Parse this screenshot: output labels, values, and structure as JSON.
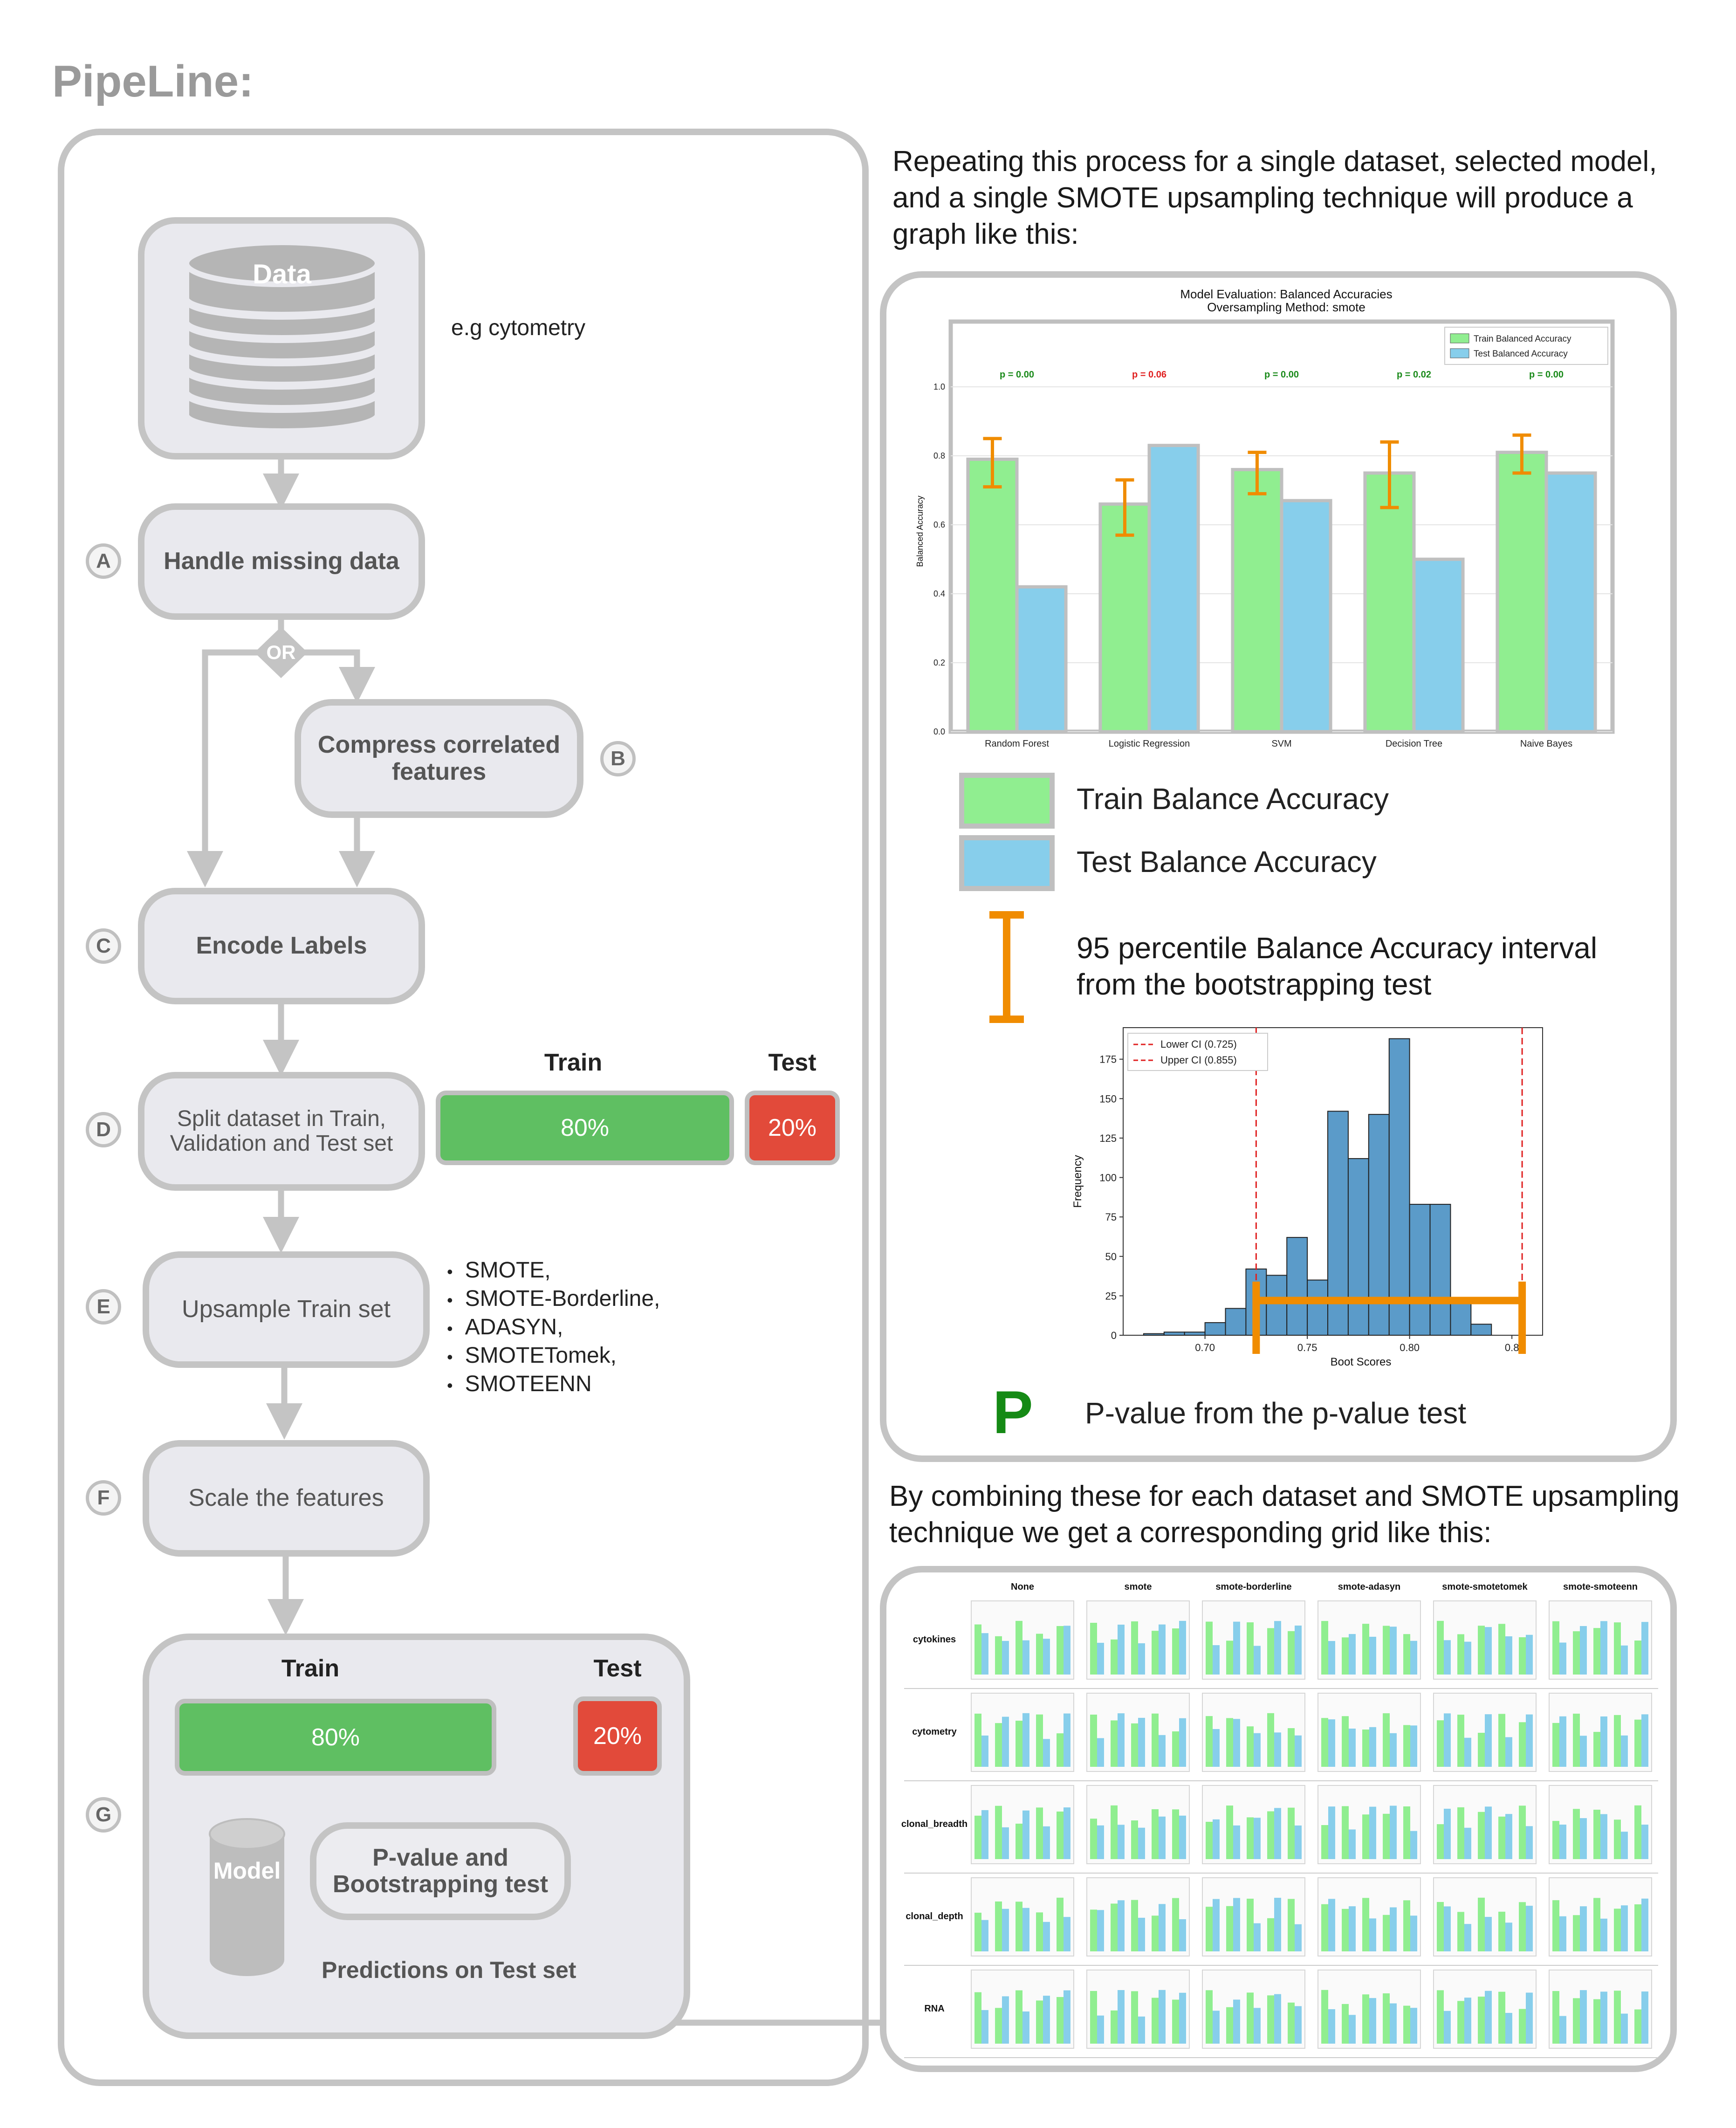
{
  "title": "PipeLine:",
  "pipeline": {
    "data_label": "Data",
    "data_example": "e.g cytometry",
    "steps": {
      "a": {
        "letter": "A",
        "label": "Handle missing data"
      },
      "or": "OR",
      "b": {
        "letter": "B",
        "label": "Compress correlated features"
      },
      "c": {
        "letter": "C",
        "label": "Encode Labels"
      },
      "d": {
        "letter": "D",
        "label": "Split dataset in Train, Validation and Test set"
      },
      "e": {
        "letter": "E",
        "label": "Upsample Train set"
      },
      "f": {
        "letter": "F",
        "label": "Scale the features"
      },
      "g": {
        "letter": "G"
      }
    },
    "split": {
      "train_label": "Train",
      "test_label": "Test",
      "train_pct": "80%",
      "test_pct": "20%"
    },
    "upsample_methods": [
      "SMOTE,",
      "SMOTE-Borderline,",
      "ADASYN,",
      "SMOTETomek,",
      "SMOTEENN"
    ],
    "model_block": {
      "train_label": "Train",
      "test_label": "Test",
      "train_pct": "80%",
      "test_pct": "20%",
      "model_label": "Model",
      "test_box": "P-value and Bootstrapping test",
      "predictions": "Predictions on Test set"
    }
  },
  "right": {
    "intro": "Repeating this process for a single dataset, selected model, and a single SMOTE upsampling technique will produce a graph like this:",
    "legend": {
      "train": "Train Balance Accuracy",
      "test": "Test Balance Accuracy",
      "ci": "95 percentile Balance Accuracy interval from the bootstrapping test",
      "p_symbol": "P",
      "p": "P-value from the p-value test"
    },
    "combine_text": "By combining these for each dataset and SMOTE upsampling technique we get a corresponding grid like this:",
    "grid": {
      "columns": [
        "None",
        "smote",
        "smote-borderline",
        "smote-adasyn",
        "smote-smotetomek",
        "smote-smoteenn"
      ],
      "rows": [
        "cytokines",
        "cytometry",
        "clonal_breadth",
        "clonal_depth",
        "RNA"
      ]
    }
  },
  "chart_data": [
    {
      "type": "bar",
      "title": "Model Evaluation: Balanced Accuracies",
      "subtitle": "Oversampling Method: smote",
      "xlabel": "",
      "ylabel": "Balanced Accuracy",
      "ylim": [
        0,
        1.0
      ],
      "yticks": [
        "0.0",
        "0.2",
        "0.4",
        "0.6",
        "0.8",
        "1.0"
      ],
      "categories": [
        "Random Forest",
        "Logistic Regression",
        "SVM",
        "Decision Tree",
        "Naive Bayes"
      ],
      "series": [
        {
          "name": "Train Balanced Accuracy",
          "values": [
            0.79,
            0.66,
            0.76,
            0.75,
            0.81
          ],
          "color": "#90ee90"
        },
        {
          "name": "Test Balanced Accuracy",
          "values": [
            0.42,
            0.83,
            0.67,
            0.5,
            0.75
          ],
          "color": "#87ceeb"
        }
      ],
      "ci": [
        [
          0.71,
          0.85
        ],
        [
          0.57,
          0.73
        ],
        [
          0.69,
          0.81
        ],
        [
          0.65,
          0.84
        ],
        [
          0.75,
          0.86
        ]
      ],
      "p_values": [
        "p = 0.00",
        "p = 0.06",
        "p = 0.00",
        "p = 0.02",
        "p = 0.00"
      ],
      "p_colors": [
        "#1a8a1a",
        "#e02020",
        "#1a8a1a",
        "#1a8a1a",
        "#1a8a1a"
      ],
      "legend": "top-right",
      "grid": true
    },
    {
      "type": "bar",
      "title": "",
      "xlabel": "Boot Scores",
      "ylabel": "Frequency",
      "xlim": [
        0.66,
        0.865
      ],
      "ylim": [
        0,
        195
      ],
      "xticks": [
        "0.70",
        "0.75",
        "0.80",
        "0.8"
      ],
      "yticks": [
        "0",
        "25",
        "50",
        "75",
        "100",
        "125",
        "150",
        "175"
      ],
      "bin_start": 0.67,
      "bin_width": 0.01,
      "counts": [
        1,
        2,
        2,
        8,
        17,
        42,
        38,
        62,
        35,
        142,
        112,
        140,
        188,
        83,
        83,
        22,
        7
      ],
      "lower_ci": 0.725,
      "upper ci": 0.855,
      "legend_entries": [
        "Lower CI (0.725)",
        "Upper CI (0.855)"
      ],
      "legend": "top-left"
    }
  ]
}
